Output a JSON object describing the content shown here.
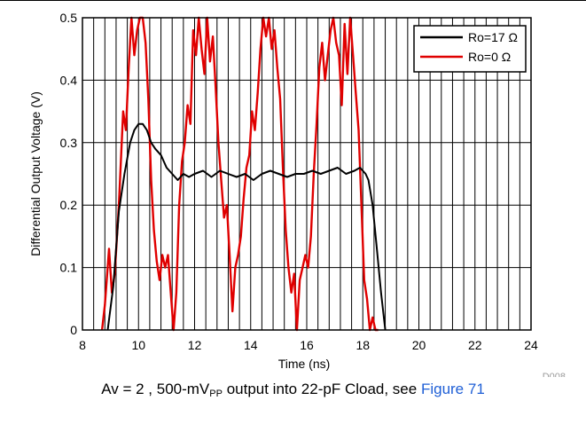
{
  "chart_data": {
    "type": "line",
    "title": "",
    "xlabel": "Time (ns)",
    "ylabel": "Differential Output Voltage (V)",
    "xlim": [
      8,
      24
    ],
    "ylim": [
      0,
      0.5
    ],
    "xticks": [
      8,
      10,
      12,
      14,
      16,
      18,
      20,
      22,
      24
    ],
    "yticks": [
      0,
      0.1,
      0.2,
      0.3,
      0.4,
      0.5
    ],
    "xtick_labels": [
      "8",
      "10",
      "12",
      "14",
      "16",
      "18",
      "20",
      "22",
      "24"
    ],
    "ytick_labels": [
      "0",
      "0.1",
      "0.2",
      "0.3",
      "0.4",
      "0.5"
    ],
    "grid": true,
    "legend_position": "top-right",
    "figure_id": "D008",
    "series": [
      {
        "name": "Ro=17 Ω",
        "color": "#000000",
        "x": [
          8.9,
          9.1,
          9.3,
          9.5,
          9.7,
          9.85,
          10.0,
          10.15,
          10.3,
          10.45,
          10.6,
          10.8,
          11.0,
          11.2,
          11.4,
          11.6,
          11.8,
          12.0,
          12.3,
          12.6,
          12.9,
          13.2,
          13.5,
          13.8,
          14.1,
          14.4,
          14.7,
          15.0,
          15.3,
          15.6,
          15.9,
          16.2,
          16.5,
          16.8,
          17.1,
          17.4,
          17.7,
          17.9,
          18.1,
          18.2,
          18.35,
          18.5,
          18.65,
          18.8
        ],
        "y": [
          0.0,
          0.07,
          0.19,
          0.25,
          0.3,
          0.32,
          0.33,
          0.33,
          0.32,
          0.3,
          0.29,
          0.28,
          0.26,
          0.25,
          0.24,
          0.25,
          0.245,
          0.25,
          0.255,
          0.245,
          0.255,
          0.25,
          0.245,
          0.25,
          0.24,
          0.25,
          0.255,
          0.25,
          0.245,
          0.25,
          0.25,
          0.255,
          0.25,
          0.255,
          0.26,
          0.25,
          0.255,
          0.26,
          0.25,
          0.24,
          0.2,
          0.13,
          0.06,
          0.0
        ]
      },
      {
        "name": "Ro=0 Ω",
        "color": "#e00000",
        "x": [
          8.7,
          8.8,
          8.95,
          9.05,
          9.15,
          9.3,
          9.45,
          9.55,
          9.65,
          9.75,
          9.85,
          9.95,
          10.05,
          10.15,
          10.25,
          10.35,
          10.45,
          10.55,
          10.65,
          10.75,
          10.85,
          10.95,
          11.05,
          11.15,
          11.25,
          11.35,
          11.45,
          11.55,
          11.65,
          11.75,
          11.85,
          11.95,
          12.05,
          12.15,
          12.25,
          12.35,
          12.45,
          12.55,
          12.65,
          12.75,
          12.85,
          12.95,
          13.05,
          13.15,
          13.25,
          13.35,
          13.45,
          13.55,
          13.65,
          13.75,
          13.85,
          13.95,
          14.05,
          14.15,
          14.25,
          14.35,
          14.45,
          14.55,
          14.65,
          14.75,
          14.85,
          14.95,
          15.05,
          15.15,
          15.25,
          15.35,
          15.45,
          15.55,
          15.65,
          15.75,
          15.85,
          15.95,
          16.05,
          16.15,
          16.25,
          16.35,
          16.45,
          16.55,
          16.65,
          16.75,
          16.85,
          16.95,
          17.05,
          17.15,
          17.25,
          17.35,
          17.45,
          17.55,
          17.65,
          17.75,
          17.85,
          17.95,
          18.05,
          18.15,
          18.25,
          18.35,
          18.45,
          18.55
        ],
        "y": [
          0.0,
          0.04,
          0.13,
          0.06,
          0.09,
          0.2,
          0.35,
          0.32,
          0.42,
          0.5,
          0.44,
          0.48,
          0.5,
          0.52,
          0.46,
          0.37,
          0.24,
          0.16,
          0.11,
          0.08,
          0.12,
          0.1,
          0.12,
          0.06,
          0.0,
          0.06,
          0.2,
          0.27,
          0.3,
          0.36,
          0.33,
          0.48,
          0.44,
          0.5,
          0.45,
          0.41,
          0.5,
          0.43,
          0.47,
          0.39,
          0.3,
          0.24,
          0.18,
          0.2,
          0.12,
          0.03,
          0.1,
          0.12,
          0.15,
          0.21,
          0.26,
          0.28,
          0.35,
          0.32,
          0.38,
          0.45,
          0.5,
          0.47,
          0.5,
          0.45,
          0.48,
          0.42,
          0.37,
          0.26,
          0.16,
          0.1,
          0.06,
          0.09,
          0.0,
          0.08,
          0.1,
          0.12,
          0.1,
          0.15,
          0.25,
          0.33,
          0.42,
          0.46,
          0.4,
          0.44,
          0.48,
          0.5,
          0.46,
          0.44,
          0.36,
          0.49,
          0.41,
          0.5,
          0.44,
          0.38,
          0.32,
          0.2,
          0.08,
          0.05,
          0.0,
          0.02,
          0.0,
          0.0
        ]
      }
    ]
  },
  "caption": {
    "prefix": "Av = 2 , 500-mV",
    "subscript": "PP",
    "middle": " output into 22-pF Cload, see ",
    "link": "Figure 71"
  }
}
